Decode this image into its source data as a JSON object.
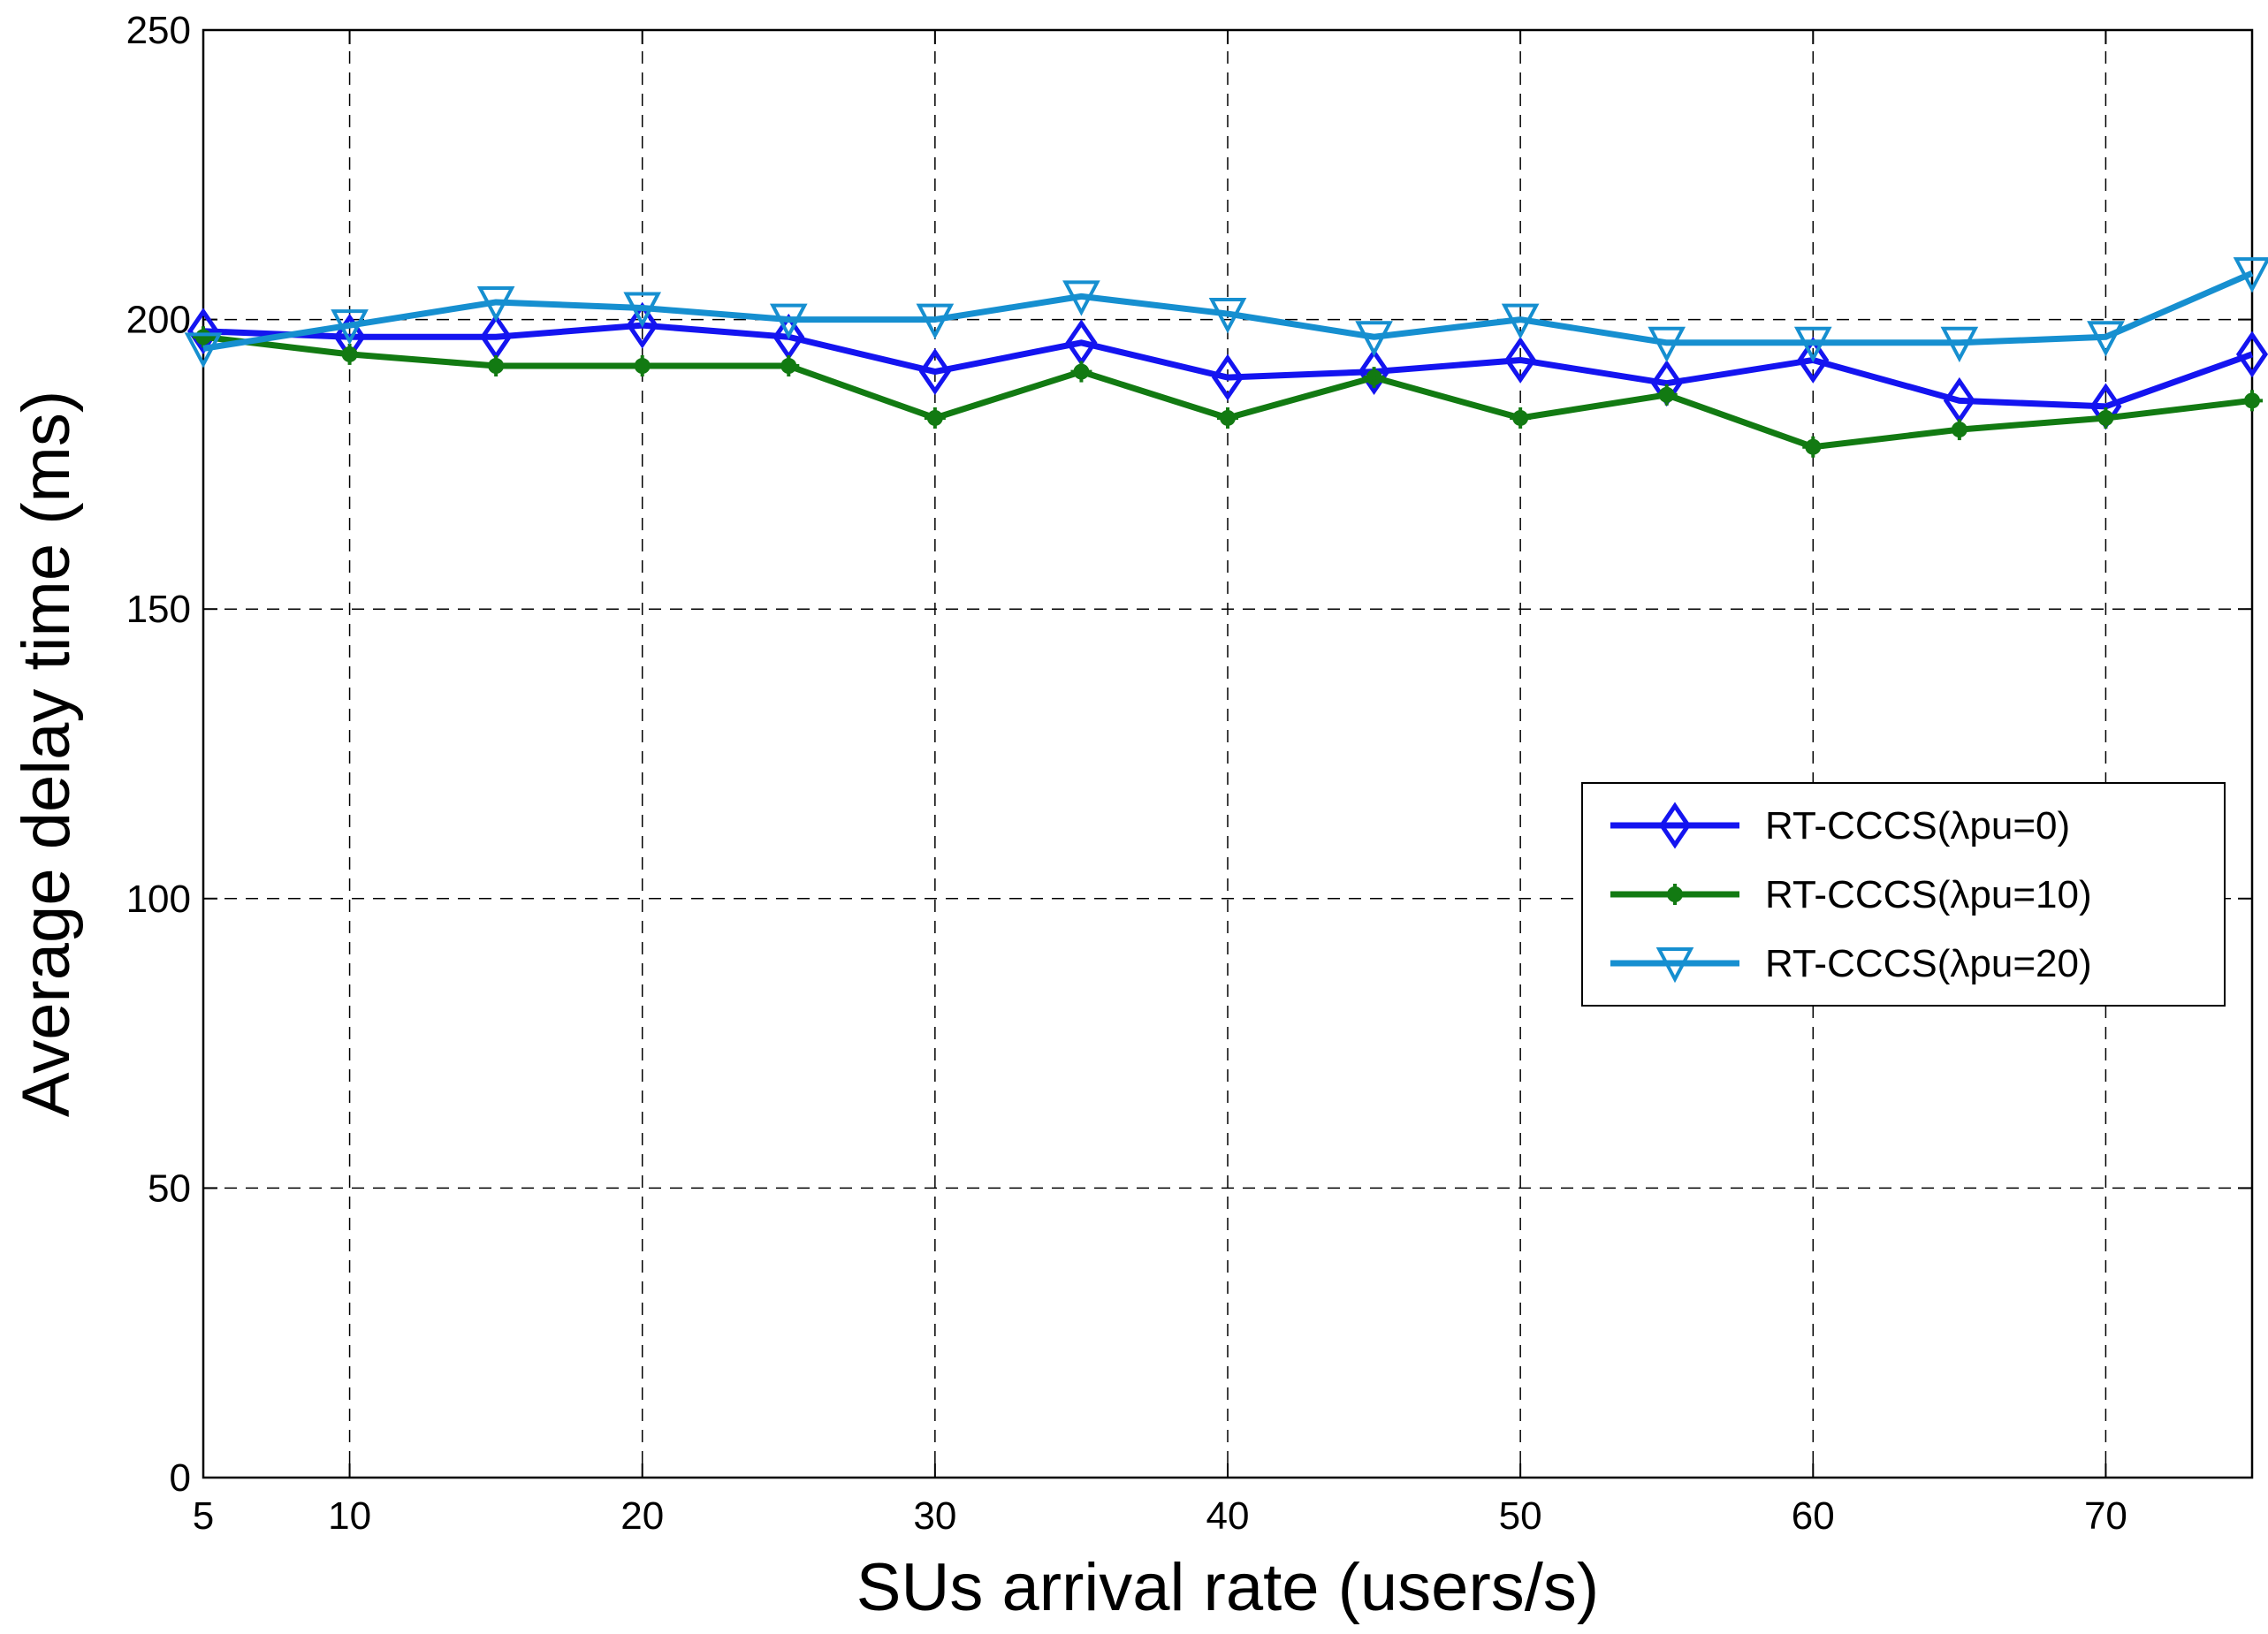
{
  "chart_data": {
    "type": "line",
    "title": "",
    "xlabel": "SUs arrival rate (users/s)",
    "ylabel": "Average delay time (ms)",
    "xlim": [
      5,
      75
    ],
    "ylim": [
      0,
      250
    ],
    "xticks": [
      5,
      10,
      20,
      30,
      40,
      50,
      60,
      70
    ],
    "yticks": [
      0,
      50,
      100,
      150,
      200,
      250
    ],
    "grid": true,
    "legend_position": "center-right",
    "x": [
      5,
      10,
      15,
      20,
      25,
      30,
      35,
      40,
      45,
      50,
      55,
      60,
      65,
      70,
      75
    ],
    "series": [
      {
        "name": "RT-CCCS(λpu=0)",
        "color": "#1414f0",
        "marker": "diamond",
        "values": [
          198,
          197,
          197,
          199,
          197,
          191,
          196,
          190,
          191,
          193,
          189,
          193,
          186,
          185,
          194
        ]
      },
      {
        "name": "RT-CCCS(λpu=10)",
        "color": "#127a12",
        "marker": "star",
        "values": [
          197,
          194,
          192,
          192,
          192,
          183,
          191,
          183,
          190,
          183,
          187,
          178,
          181,
          183,
          186
        ]
      },
      {
        "name": "RT-CCCS(λpu=20)",
        "color": "#168fd0",
        "marker": "triangle-down",
        "values": [
          195,
          199,
          203,
          202,
          200,
          200,
          204,
          201,
          197,
          200,
          196,
          196,
          196,
          197,
          208
        ]
      }
    ]
  }
}
